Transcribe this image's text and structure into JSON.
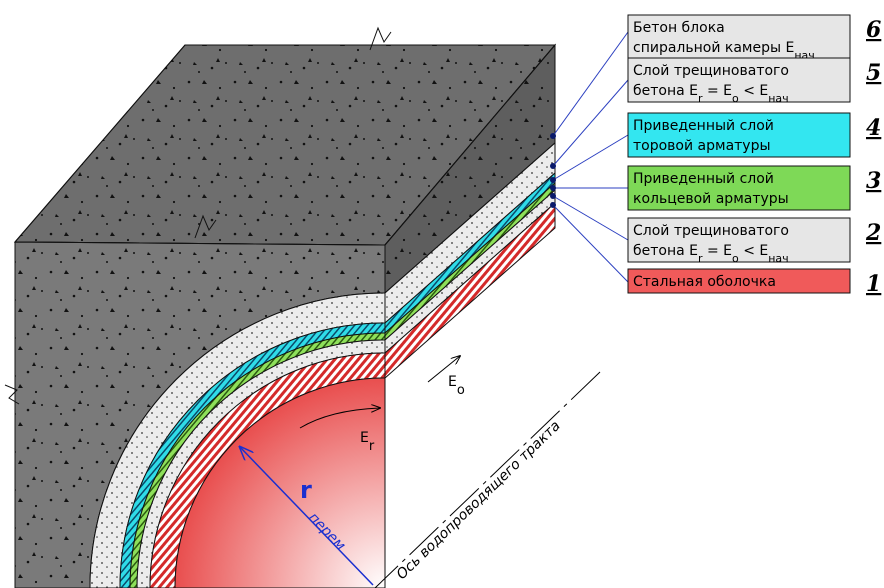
{
  "layers": [
    {
      "number": "6",
      "color": "#e6e6e6",
      "lines": [
        [
          "Бетон блока"
        ],
        [
          "спиральной камеры E",
          "нач"
        ]
      ]
    },
    {
      "number": "5",
      "color": "#e6e6e6",
      "lines": [
        [
          "Слой трещиноватого"
        ],
        [
          "бетона  E",
          "r",
          " = E",
          "o",
          " < E",
          "нач"
        ]
      ]
    },
    {
      "number": "4",
      "color": "#33e6f0",
      "lines": [
        [
          "Приведенный слой"
        ],
        [
          "торовой арматуры"
        ]
      ]
    },
    {
      "number": "3",
      "color": "#7ed957",
      "lines": [
        [
          "Приведенный слой"
        ],
        [
          "кольцевой арматуры"
        ]
      ]
    },
    {
      "number": "2",
      "color": "#e6e6e6",
      "lines": [
        [
          "Слой трещиноватого"
        ],
        [
          "бетона  E",
          "r",
          " = E",
          "o",
          " < E",
          "нач"
        ]
      ]
    },
    {
      "number": "1",
      "color": "#f05a5a",
      "lines": [
        [
          "Стальная оболочка"
        ]
      ]
    }
  ],
  "annotations": {
    "e_o": [
      "E",
      "o"
    ],
    "e_r": [
      "E",
      "r"
    ],
    "r": [
      "r",
      "перем"
    ],
    "axis": "Ось водопроводящего тракта"
  }
}
